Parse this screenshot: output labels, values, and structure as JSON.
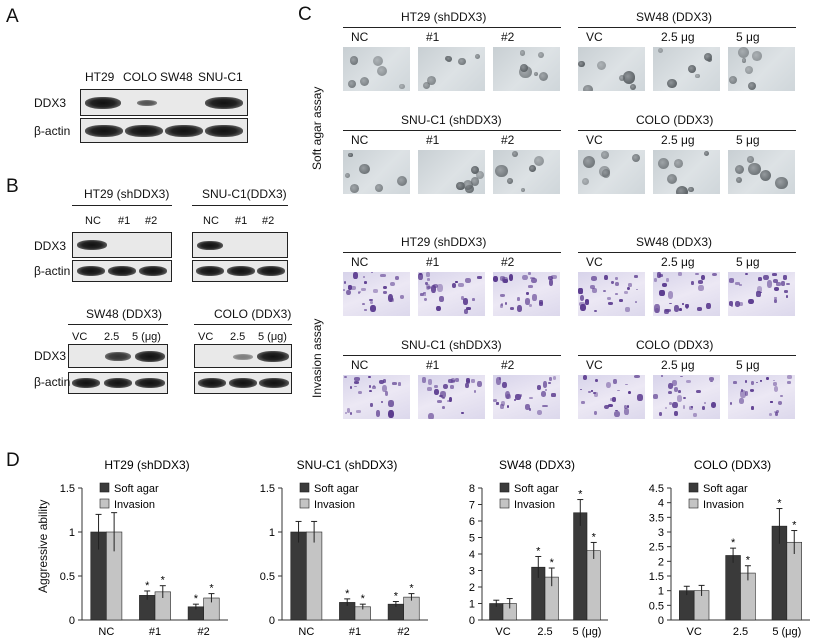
{
  "panels": {
    "a": "A",
    "b": "B",
    "c": "C",
    "d": "D"
  },
  "panel_a": {
    "lanes": [
      "HT29",
      "COLO",
      "SW48",
      "SNU-C1"
    ],
    "rows": [
      "DDX3",
      "β-actin"
    ]
  },
  "panel_b": {
    "blots": [
      {
        "title": "HT29 (shDDX3)",
        "lanes": [
          "NC",
          "#1",
          "#2"
        ]
      },
      {
        "title": "SNU-C1(DDX3)",
        "lanes": [
          "NC",
          "#1",
          "#2"
        ]
      },
      {
        "title": "SW48 (DDX3)",
        "lanes": [
          "VC",
          "2.5",
          "5 (μg)"
        ]
      },
      {
        "title": "COLO (DDX3)",
        "lanes": [
          "VC",
          "2.5",
          "5 (μg)"
        ]
      }
    ],
    "rows": [
      "DDX3",
      "β-actin"
    ]
  },
  "panel_c": {
    "side_labels": [
      "Soft agar assay",
      "Invasion assay"
    ],
    "groups": [
      {
        "title": "HT29 (shDDX3)",
        "lanes": [
          "NC",
          "#1",
          "#2"
        ]
      },
      {
        "title": "SW48 (DDX3)",
        "lanes": [
          "VC",
          "2.5 μg",
          "5 μg"
        ]
      },
      {
        "title": "SNU-C1 (shDDX3)",
        "lanes": [
          "NC",
          "#1",
          "#2"
        ]
      },
      {
        "title": "COLO (DDX3)",
        "lanes": [
          "VC",
          "2.5 μg",
          "5 μg"
        ]
      },
      {
        "title": "HT29 (shDDX3)",
        "lanes": [
          "NC",
          "#1",
          "#2"
        ]
      },
      {
        "title": "SW48 (DDX3)",
        "lanes": [
          "VC",
          "2.5 μg",
          "5 μg"
        ]
      },
      {
        "title": "SNU-C1 (shDDX3)",
        "lanes": [
          "NC",
          "#1",
          "#2"
        ]
      },
      {
        "title": "COLO (DDX3)",
        "lanes": [
          "VC",
          "2.5 μg",
          "5 μg"
        ]
      }
    ]
  },
  "panel_d": {
    "ylabel": "Aggressive ability",
    "legend": [
      "Soft agar",
      "Invasion"
    ],
    "colors": {
      "soft_agar": "#3a3a3a",
      "invasion": "#c4c4c4"
    }
  },
  "chart_data": [
    {
      "type": "bar",
      "title": "HT29 (shDDX3)",
      "categories": [
        "NC",
        "#1",
        "#2"
      ],
      "ylim": [
        0,
        1.5
      ],
      "yticks": [
        "0",
        "0.5",
        "1",
        "1.5"
      ],
      "series": [
        {
          "name": "Soft agar",
          "values": [
            1.0,
            0.28,
            0.15
          ],
          "errors": [
            0.2,
            0.05,
            0.03
          ]
        },
        {
          "name": "Invasion",
          "values": [
            1.0,
            0.32,
            0.25
          ],
          "errors": [
            0.22,
            0.07,
            0.05
          ]
        }
      ],
      "stars": [
        [
          false,
          true,
          true
        ],
        [
          false,
          true,
          true
        ]
      ]
    },
    {
      "type": "bar",
      "title": "SNU-C1 (shDDX3)",
      "categories": [
        "NC",
        "#1",
        "#2"
      ],
      "ylim": [
        0,
        1.5
      ],
      "yticks": [
        "0",
        "0.5",
        "1",
        "1.5"
      ],
      "series": [
        {
          "name": "Soft agar",
          "values": [
            1.0,
            0.2,
            0.18
          ],
          "errors": [
            0.12,
            0.04,
            0.03
          ]
        },
        {
          "name": "Invasion",
          "values": [
            1.0,
            0.15,
            0.26
          ],
          "errors": [
            0.12,
            0.03,
            0.04
          ]
        }
      ],
      "stars": [
        [
          false,
          true,
          true
        ],
        [
          false,
          true,
          true
        ]
      ]
    },
    {
      "type": "bar",
      "title": "SW48 (DDX3)",
      "categories": [
        "VC",
        "2.5",
        "5 (μg)"
      ],
      "ylim": [
        0,
        8
      ],
      "yticks": [
        "0",
        "1",
        "2",
        "3",
        "4",
        "5",
        "6",
        "7",
        "8"
      ],
      "series": [
        {
          "name": "Soft agar",
          "values": [
            1.0,
            3.2,
            6.5
          ],
          "errors": [
            0.2,
            0.65,
            0.8
          ]
        },
        {
          "name": "Invasion",
          "values": [
            1.0,
            2.6,
            4.2
          ],
          "errors": [
            0.3,
            0.55,
            0.5
          ]
        }
      ],
      "stars": [
        [
          false,
          true,
          true
        ],
        [
          false,
          true,
          true
        ]
      ]
    },
    {
      "type": "bar",
      "title": "COLO (DDX3)",
      "categories": [
        "VC",
        "2.5",
        "5 (μg)"
      ],
      "ylim": [
        0,
        4.5
      ],
      "yticks": [
        "0",
        "0.5",
        "1",
        "1.5",
        "2",
        "2.5",
        "3",
        "3.5",
        "4",
        "4.5"
      ],
      "series": [
        {
          "name": "Soft agar",
          "values": [
            1.0,
            2.2,
            3.2
          ],
          "errors": [
            0.15,
            0.25,
            0.6
          ]
        },
        {
          "name": "Invasion",
          "values": [
            1.0,
            1.6,
            2.65
          ],
          "errors": [
            0.18,
            0.25,
            0.4
          ]
        }
      ],
      "stars": [
        [
          false,
          true,
          true
        ],
        [
          false,
          true,
          true
        ]
      ]
    }
  ]
}
